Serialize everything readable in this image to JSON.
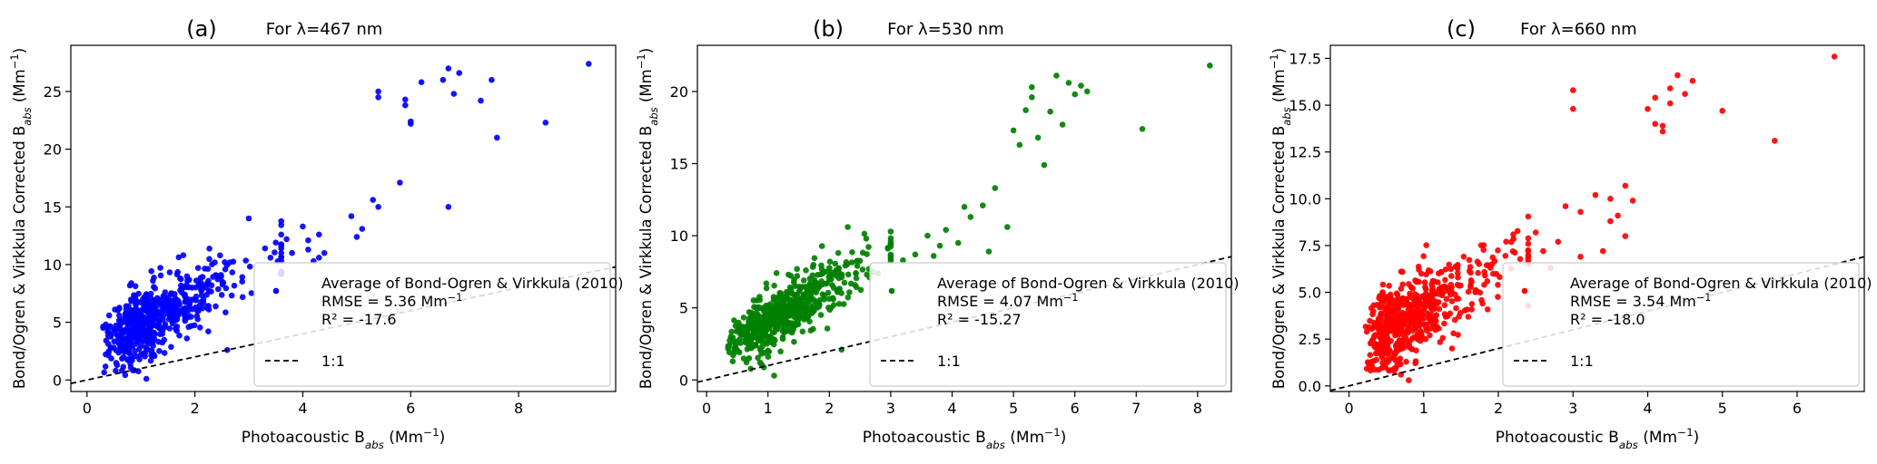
{
  "colors": {
    "panel_a": "#0000ff",
    "panel_b": "#008000",
    "panel_c": "#ff0000",
    "reference_line": "#000000"
  },
  "chart_data": [
    {
      "type": "scatter",
      "panel_label": "(a)",
      "title": "For λ=467 nm",
      "xlabel": "Photoacoustic B_abs (Mm⁻¹)",
      "ylabel": "Bond/Ogren & Virkkula Corrected B_abs (Mm⁻¹)",
      "xlim": [
        -0.3,
        9.8
      ],
      "ylim": [
        -1.0,
        29.0
      ],
      "xticks": [
        0,
        2,
        4,
        6,
        8
      ],
      "yticks": [
        0,
        5,
        10,
        15,
        20,
        25
      ],
      "grid": false,
      "legend_position": "lower-right",
      "series": [
        {
          "name": "Average of Bond-Ogren & Virkkula (2010)",
          "color": "#0000ff",
          "cluster": {
            "count": 560,
            "seed": 11,
            "x_mu": 0.2,
            "x_sigma": 0.5,
            "x_min": 0.15,
            "x_max": 3.6,
            "slope": 2.3,
            "intercept": 2.5,
            "noise": 1.5,
            "y_min": 0.3
          },
          "points": [
            [
              1.1,
              0.1
            ],
            [
              2.6,
              2.6
            ],
            [
              3.0,
              14.0
            ],
            [
              3.3,
              11.4
            ],
            [
              3.4,
              10.6
            ],
            [
              3.5,
              11.9
            ],
            [
              3.6,
              12.6
            ],
            [
              3.7,
              12.2
            ],
            [
              3.8,
              11.0
            ],
            [
              4.0,
              13.3
            ],
            [
              4.1,
              12.1
            ],
            [
              4.1,
              11.3
            ],
            [
              4.2,
              10.3
            ],
            [
              4.3,
              12.6
            ],
            [
              4.4,
              11.0
            ],
            [
              4.3,
              10.6
            ],
            [
              4.9,
              14.2
            ],
            [
              5.0,
              12.4
            ],
            [
              5.1,
              13.1
            ],
            [
              5.3,
              15.6
            ],
            [
              5.4,
              15.0
            ],
            [
              5.4,
              24.5
            ],
            [
              5.4,
              25.0
            ],
            [
              5.8,
              17.1
            ],
            [
              5.9,
              24.3
            ],
            [
              5.9,
              23.8
            ],
            [
              6.0,
              22.2
            ],
            [
              6.0,
              22.4
            ],
            [
              6.2,
              25.8
            ],
            [
              6.6,
              26.0
            ],
            [
              6.7,
              27.0
            ],
            [
              6.7,
              15.0
            ],
            [
              6.8,
              24.8
            ],
            [
              6.9,
              26.6
            ],
            [
              7.3,
              24.2
            ],
            [
              7.5,
              26.0
            ],
            [
              7.6,
              21.0
            ],
            [
              8.5,
              22.3
            ],
            [
              9.3,
              27.4
            ]
          ]
        },
        {
          "name": "1:1",
          "type": "line",
          "style": "dashed",
          "color": "#000000",
          "x": [
            -0.3,
            9.8
          ],
          "y": [
            -0.3,
            9.8
          ]
        }
      ],
      "annotations": [
        "Average of Bond-Ogren & Virkkula (2010)",
        "RMSE = 5.36 Mm⁻¹",
        "R² = -17.6",
        "1:1"
      ]
    },
    {
      "type": "scatter",
      "panel_label": "(b)",
      "title": "For λ=530 nm",
      "xlabel": "Photoacoustic B_abs (Mm⁻¹)",
      "ylabel": "Bond/Ogren & Virkkula Corrected B_abs (Mm⁻¹)",
      "xlim": [
        -0.15,
        8.55
      ],
      "ylim": [
        -0.8,
        23.2
      ],
      "xticks": [
        0,
        1,
        2,
        3,
        4,
        5,
        6,
        7,
        8
      ],
      "yticks": [
        0,
        5,
        10,
        15,
        20
      ],
      "grid": false,
      "legend_position": "lower-right",
      "series": [
        {
          "name": "Average of Bond-Ogren & Virkkula (2010)",
          "color": "#008000",
          "cluster": {
            "count": 560,
            "seed": 23,
            "x_mu": 0.15,
            "x_sigma": 0.45,
            "x_min": 0.35,
            "x_max": 3.0,
            "slope": 2.4,
            "intercept": 1.6,
            "noise": 1.0,
            "y_min": 0.5
          },
          "points": [
            [
              1.1,
              0.3
            ],
            [
              2.2,
              2.1
            ],
            [
              2.3,
              10.6
            ],
            [
              2.6,
              9.8
            ],
            [
              3.0,
              9.6
            ],
            [
              3.2,
              8.3
            ],
            [
              3.4,
              8.7
            ],
            [
              3.6,
              10.0
            ],
            [
              3.7,
              8.6
            ],
            [
              3.8,
              9.3
            ],
            [
              3.9,
              10.4
            ],
            [
              4.1,
              9.5
            ],
            [
              4.2,
              12.0
            ],
            [
              4.3,
              11.3
            ],
            [
              4.5,
              12.1
            ],
            [
              4.6,
              8.9
            ],
            [
              4.7,
              13.3
            ],
            [
              4.9,
              10.6
            ],
            [
              5.0,
              17.3
            ],
            [
              5.1,
              16.3
            ],
            [
              5.2,
              18.7
            ],
            [
              5.3,
              20.3
            ],
            [
              5.3,
              19.6
            ],
            [
              5.4,
              16.8
            ],
            [
              5.5,
              14.9
            ],
            [
              5.6,
              18.6
            ],
            [
              5.7,
              21.1
            ],
            [
              5.9,
              20.6
            ],
            [
              5.8,
              17.7
            ],
            [
              6.0,
              19.8
            ],
            [
              6.1,
              20.4
            ],
            [
              6.2,
              20.0
            ],
            [
              7.1,
              17.4
            ],
            [
              8.2,
              21.8
            ]
          ]
        },
        {
          "name": "1:1",
          "type": "line",
          "style": "dashed",
          "color": "#000000",
          "x": [
            -0.15,
            8.55
          ],
          "y": [
            -0.15,
            8.55
          ]
        }
      ],
      "annotations": [
        "Average of Bond-Ogren & Virkkula (2010)",
        "RMSE = 4.07 Mm⁻¹",
        "R² = -15.27",
        "1:1"
      ]
    },
    {
      "type": "scatter",
      "panel_label": "(c)",
      "title": "For λ=660 nm",
      "xlabel": "Photoacoustic B_abs (Mm⁻¹)",
      "ylabel": "Bond/Ogren & Virkkula Corrected B_abs (Mm⁻¹)",
      "xlim": [
        -0.25,
        6.9
      ],
      "ylim": [
        -0.3,
        18.2
      ],
      "xticks": [
        0,
        1,
        2,
        3,
        4,
        5,
        6
      ],
      "yticks": [
        0.0,
        2.5,
        5.0,
        7.5,
        10.0,
        12.5,
        15.0,
        17.5
      ],
      "grid": false,
      "legend_position": "lower-right",
      "series": [
        {
          "name": "Average of Bond-Ogren & Virkkula (2010)",
          "color": "#ff0000",
          "cluster": {
            "count": 560,
            "seed": 37,
            "x_mu": -0.25,
            "x_sigma": 0.5,
            "x_min": 0.05,
            "x_max": 2.4,
            "slope": 2.2,
            "intercept": 1.9,
            "noise": 1.1,
            "y_min": 0.6
          },
          "points": [
            [
              0.8,
              0.3
            ],
            [
              2.2,
              8.1
            ],
            [
              2.4,
              7.6
            ],
            [
              2.5,
              8.2
            ],
            [
              2.6,
              7.2
            ],
            [
              2.7,
              6.3
            ],
            [
              2.8,
              7.7
            ],
            [
              2.9,
              9.6
            ],
            [
              3.1,
              6.9
            ],
            [
              3.0,
              15.8
            ],
            [
              3.0,
              14.8
            ],
            [
              3.1,
              9.3
            ],
            [
              3.3,
              10.2
            ],
            [
              3.4,
              7.2
            ],
            [
              3.5,
              8.8
            ],
            [
              3.5,
              10.0
            ],
            [
              3.6,
              9.1
            ],
            [
              3.7,
              8.0
            ],
            [
              3.7,
              10.7
            ],
            [
              3.8,
              9.9
            ],
            [
              4.0,
              14.8
            ],
            [
              4.1,
              15.4
            ],
            [
              4.1,
              14.0
            ],
            [
              4.2,
              13.6
            ],
            [
              4.2,
              13.9
            ],
            [
              4.3,
              15.9
            ],
            [
              4.3,
              15.1
            ],
            [
              4.4,
              16.6
            ],
            [
              4.5,
              15.6
            ],
            [
              4.6,
              16.3
            ],
            [
              5.0,
              14.7
            ],
            [
              5.7,
              13.1
            ],
            [
              6.5,
              17.6
            ]
          ]
        },
        {
          "name": "1:1",
          "type": "line",
          "style": "dashed",
          "color": "#000000",
          "x": [
            -0.25,
            6.9
          ],
          "y": [
            -0.25,
            6.9
          ]
        }
      ],
      "annotations": [
        "Average of Bond-Ogren & Virkkula (2010)",
        "RMSE = 3.54 Mm⁻¹",
        "R² = -18.0",
        "1:1"
      ]
    }
  ]
}
